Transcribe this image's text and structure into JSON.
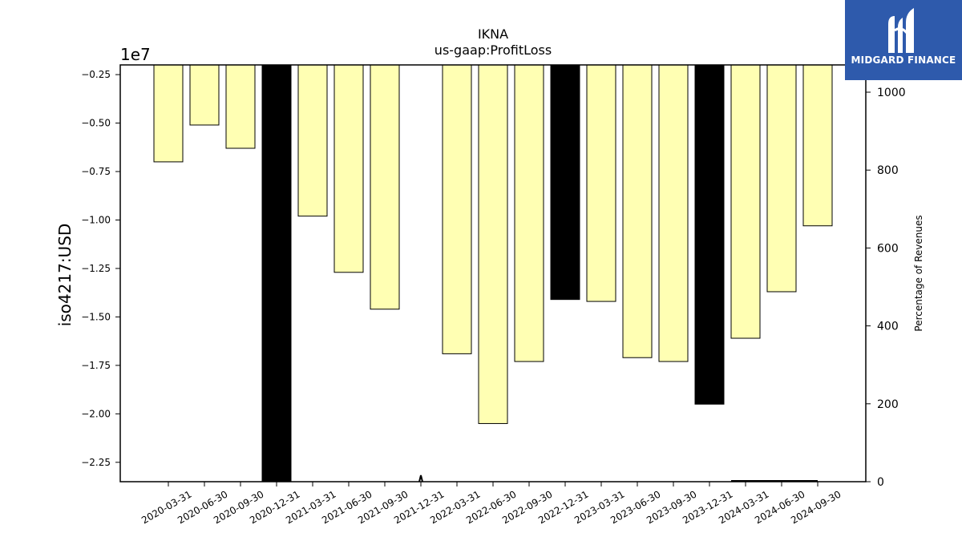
{
  "chart_data": {
    "type": "bar",
    "title": "IKNA",
    "subtitle": "us-gaap:ProfitLoss",
    "ylabel": "iso4217:USD",
    "y_offset_label": "1e7",
    "y2label": "Percentage of Revenues",
    "ylim": [
      -2.35,
      -0.2
    ],
    "y2lim": [
      0,
      1070
    ],
    "y_ticks": [
      "−2.25",
      "−2.00",
      "−1.75",
      "−1.50",
      "−1.25",
      "−1.00",
      "−0.75",
      "−0.50",
      "−0.25"
    ],
    "y2_ticks": [
      "0",
      "200",
      "400",
      "600",
      "800",
      "1000"
    ],
    "categories": [
      "2020-03-31",
      "2020-06-30",
      "2020-09-30",
      "2020-12-31",
      "2021-03-31",
      "2021-06-30",
      "2021-09-30",
      "2021-12-31",
      "2022-03-31",
      "2022-06-30",
      "2022-09-30",
      "2022-12-31",
      "2023-03-31",
      "2023-06-30",
      "2023-09-30",
      "2023-12-31",
      "2024-03-31",
      "2024-06-30",
      "2024-09-30"
    ],
    "values": [
      -0.7,
      -0.51,
      -0.63,
      -2.35,
      -0.98,
      -1.27,
      -1.46,
      null,
      -1.69,
      -2.05,
      -1.73,
      -1.41,
      -1.42,
      -1.71,
      -1.73,
      -1.95,
      -1.61,
      -1.37,
      -1.03
    ],
    "highlight": [
      false,
      false,
      false,
      true,
      false,
      false,
      false,
      false,
      false,
      false,
      false,
      true,
      false,
      false,
      false,
      true,
      false,
      false,
      false
    ],
    "bar_color": "#ffffb3",
    "highlight_color": "#000000"
  },
  "logo": {
    "name": "MIDGARD FINANCE",
    "bg_color": "#2e5aac"
  }
}
